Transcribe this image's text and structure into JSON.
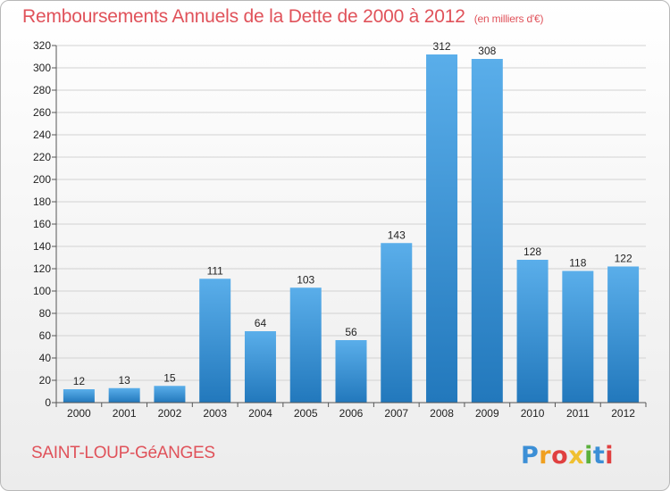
{
  "title": "Remboursements Annuels de la Dette de 2000 à 2012",
  "unit_note": "(en milliers d'€)",
  "commune": "SAINT-LOUP-GéANGES",
  "logo_text": "Proxiti",
  "colors": {
    "accent": "#e0525a",
    "bar_top": "#5aaeea",
    "bar_bottom": "#2278bc"
  },
  "chart_data": {
    "type": "bar",
    "title": "Remboursements Annuels de la Dette de 2000 à 2012",
    "subtitle": "(en milliers d'€)",
    "categories": [
      "2000",
      "2001",
      "2002",
      "2003",
      "2004",
      "2005",
      "2006",
      "2007",
      "2008",
      "2009",
      "2010",
      "2011",
      "2012"
    ],
    "values": [
      12,
      13,
      15,
      111,
      64,
      103,
      56,
      143,
      312,
      308,
      128,
      118,
      122
    ],
    "ylim": [
      0,
      320
    ],
    "yticks": [
      0,
      20,
      40,
      60,
      80,
      100,
      120,
      140,
      160,
      180,
      200,
      220,
      240,
      260,
      280,
      300,
      320
    ],
    "grid": true,
    "xlabel": "",
    "ylabel": ""
  }
}
